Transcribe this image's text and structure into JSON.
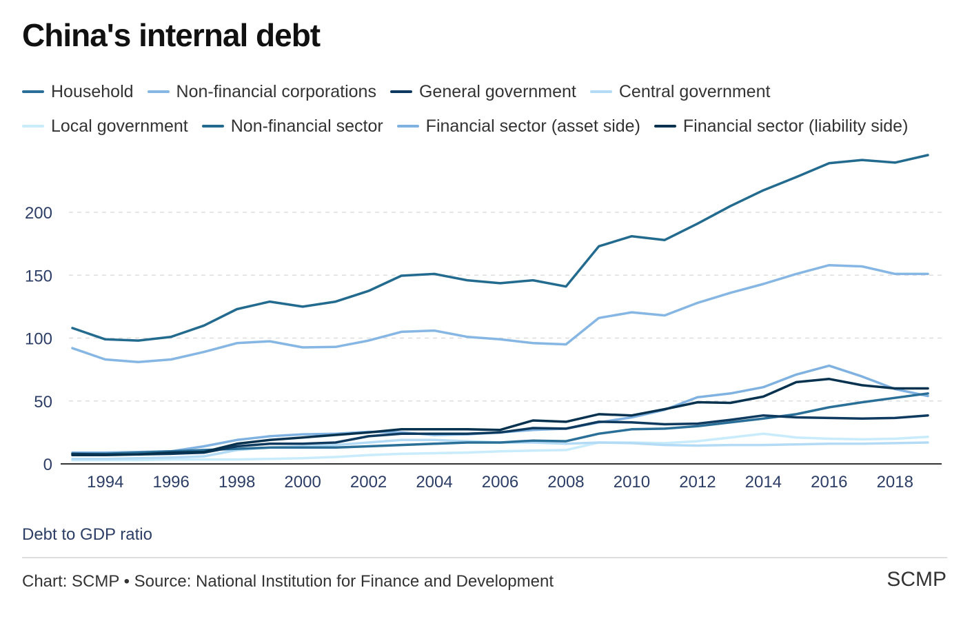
{
  "chart_data": {
    "type": "line",
    "title": "China's internal debt",
    "ylabel": "Debt to GDP ratio",
    "xlabel": "",
    "source": "Chart: SCMP • Source: National Institution for Finance and Development",
    "brand": "SCMP",
    "ylim": [
      0,
      250
    ],
    "yticks": [
      0,
      50,
      100,
      150,
      200
    ],
    "xticks": [
      1994,
      1996,
      1998,
      2000,
      2002,
      2004,
      2006,
      2008,
      2010,
      2012,
      2014,
      2016,
      2018
    ],
    "grid": "horizontal-dashed",
    "legend_position": "top",
    "x": [
      1993,
      1994,
      1995,
      1996,
      1997,
      1998,
      1999,
      2000,
      2001,
      2002,
      2003,
      2004,
      2005,
      2006,
      2007,
      2008,
      2009,
      2010,
      2011,
      2012,
      2013,
      2014,
      2015,
      2016,
      2017,
      2018,
      2019
    ],
    "series": [
      {
        "name": "Household",
        "color": "#2a6f97",
        "values": [
          8,
          8,
          9,
          10,
          11,
          12,
          13,
          13,
          13,
          14,
          15,
          16,
          17,
          17,
          18.5,
          18,
          24,
          27.5,
          28,
          30,
          33,
          36,
          39.5,
          45,
          49,
          52.5,
          56
        ]
      },
      {
        "name": "Non-financial corporations",
        "color": "#86b6e3",
        "values": [
          92,
          83,
          81,
          83,
          89,
          96,
          97.5,
          92.6,
          93,
          98,
          105,
          106,
          101,
          99,
          96,
          95,
          116,
          120.5,
          118,
          128,
          136,
          143,
          151,
          158,
          157,
          151,
          151
        ]
      },
      {
        "name": "General government",
        "color": "#0f3a5f",
        "values": [
          8,
          7.5,
          7.5,
          8,
          9,
          14,
          16,
          16,
          17,
          22,
          24,
          24,
          24,
          25,
          28.5,
          28,
          33.5,
          33,
          31.5,
          32,
          35,
          38.5,
          37,
          36.5,
          36,
          36.5,
          38.5
        ]
      },
      {
        "name": "Central government",
        "color": "#b3dbf5",
        "values": [
          4,
          4,
          4.5,
          5,
          6,
          11,
          13,
          14,
          15,
          17,
          19,
          19,
          18,
          17,
          17,
          16,
          17,
          16.5,
          15,
          14.5,
          15,
          15,
          15.5,
          16,
          16,
          16.5,
          17
        ]
      },
      {
        "name": "Local government",
        "color": "#c8ecfb",
        "values": [
          3,
          3,
          3,
          3.5,
          3.5,
          3.5,
          4,
          4.5,
          5.5,
          7,
          8,
          8.5,
          9,
          10,
          10.5,
          11,
          17,
          17,
          16.5,
          18,
          21,
          24,
          21,
          20,
          19.5,
          20,
          21.5
        ]
      },
      {
        "name": "Non-financial sector",
        "color": "#236a8f",
        "values": [
          108,
          99,
          98,
          101,
          110,
          123,
          129,
          125,
          129,
          137.5,
          149.6,
          151,
          146,
          143.6,
          146,
          141,
          173,
          181,
          178,
          191,
          205,
          217.5,
          228,
          239,
          241.6,
          239.5,
          245.5
        ]
      },
      {
        "name": "Financial sector (asset side)",
        "color": "#7fb2e0",
        "values": [
          9,
          9,
          9.5,
          10,
          14,
          19,
          22,
          23.5,
          24,
          25.5,
          25,
          23,
          23.5,
          25,
          27,
          28,
          33,
          37,
          43,
          53,
          56,
          61,
          71,
          78,
          69.5,
          59.5,
          54
        ]
      },
      {
        "name": "Financial sector (liability side)",
        "color": "#06324f",
        "values": [
          7,
          7,
          7.5,
          9,
          9.5,
          16,
          19,
          21,
          23,
          25,
          27.5,
          27.5,
          27.5,
          27,
          34.5,
          33.5,
          39.5,
          38.5,
          43.5,
          49,
          48.5,
          53.5,
          65,
          67.5,
          62.5,
          60,
          60
        ]
      }
    ]
  }
}
